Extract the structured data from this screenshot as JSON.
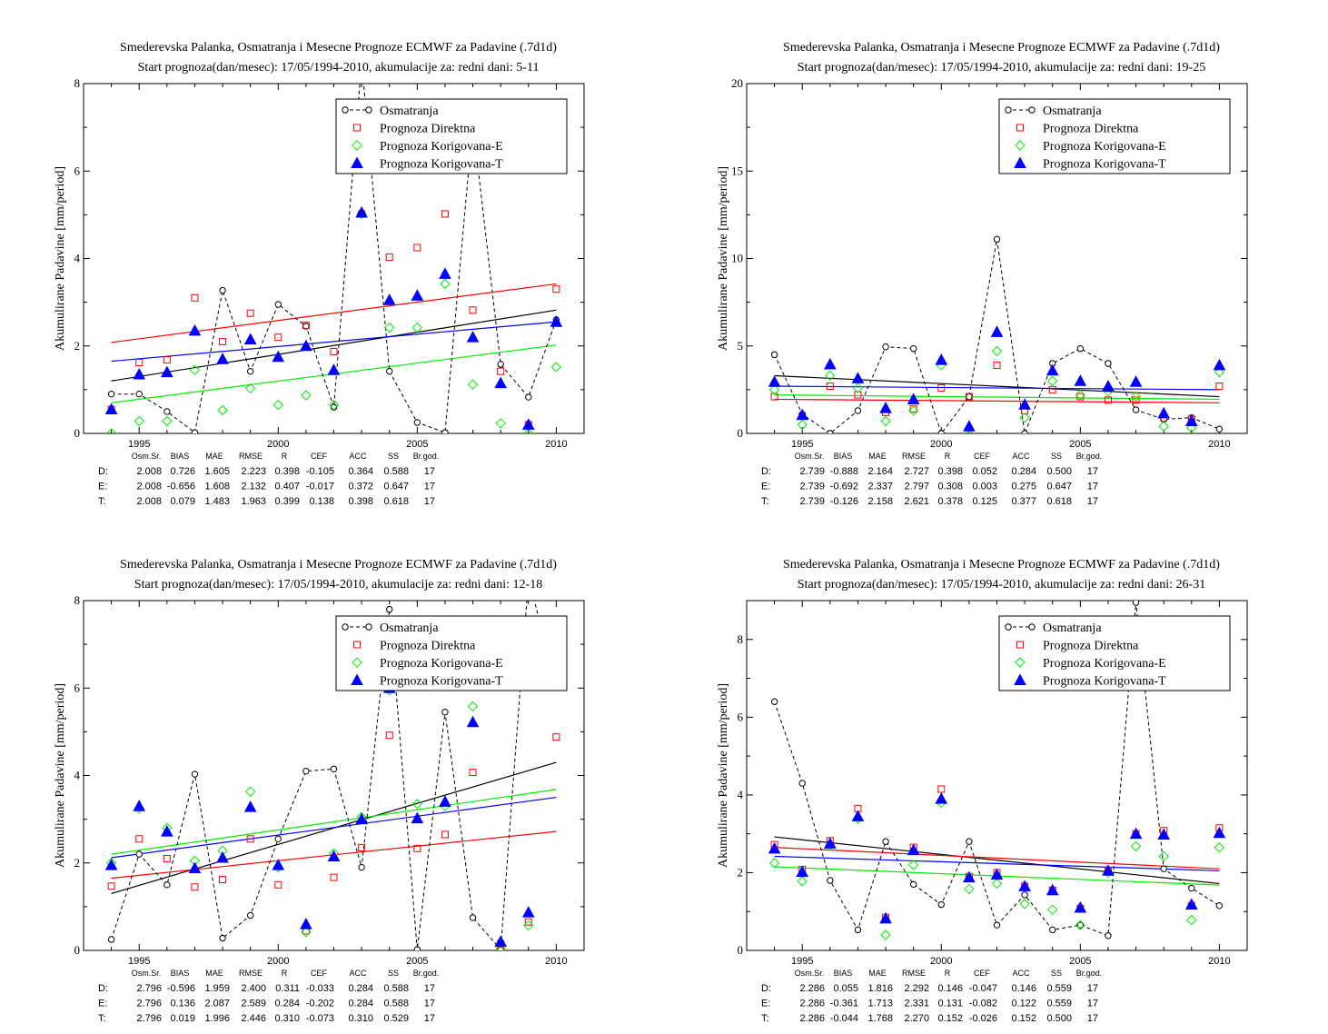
{
  "colors": {
    "obs": "#000000",
    "direct": "#ff0000",
    "corr_e": "#00ee00",
    "corr_t": "#0000ff"
  },
  "chart_data": [
    {
      "type": "scatter",
      "title": "Smederevska Palanka, Osmatranja i Mesecne Prognoze ECMWF za Padavine (.7d1d)",
      "subtitle": "Start prognoza(dan/mesec): 17/05/1994-2010, akumulacije za: redni dani: 5-11",
      "xlabel": "",
      "ylabel": "Akumulirane Padavine [mm/period]",
      "xlim": [
        1993,
        2011
      ],
      "ylim": [
        0,
        8
      ],
      "yticks": [
        0,
        2,
        4,
        6,
        8
      ],
      "xticks": [
        1995,
        2000,
        2005,
        2010
      ],
      "grid": false,
      "legend_position": "top-right",
      "x": [
        1994,
        1995,
        1996,
        1997,
        1998,
        1999,
        2000,
        2001,
        2002,
        2003,
        2004,
        2005,
        2006,
        2007,
        2008,
        2009,
        2010
      ],
      "series": [
        {
          "name": "Osmatranja",
          "style": "obs",
          "values": [
            0.9,
            0.9,
            0.5,
            0.02,
            3.27,
            1.42,
            2.95,
            2.45,
            0.6,
            8.5,
            1.42,
            0.25,
            0.02,
            7.1,
            1.58,
            0.83,
            2.6
          ]
        },
        {
          "name": "Prognoza Direktna",
          "style": "direct",
          "values": [
            0.55,
            1.62,
            1.68,
            3.1,
            2.1,
            2.75,
            2.2,
            2.47,
            1.87,
            5.02,
            4.03,
            4.25,
            5.02,
            2.82,
            1.42,
            0.2,
            3.3
          ]
        },
        {
          "name": "Prognoza Korigovana-E",
          "style": "corr_e",
          "values": [
            0.0,
            0.28,
            0.28,
            1.45,
            0.53,
            1.03,
            0.65,
            0.87,
            0.65,
            5.02,
            2.42,
            2.42,
            3.42,
            1.12,
            0.23,
            0.0,
            1.52
          ]
        },
        {
          "name": "Prognoza Korigovana-T",
          "style": "corr_t",
          "values": [
            0.55,
            1.35,
            1.4,
            2.35,
            1.7,
            2.15,
            1.75,
            2.0,
            1.45,
            5.05,
            3.05,
            3.15,
            3.65,
            2.2,
            1.15,
            0.2,
            2.55
          ]
        }
      ],
      "trendlines": [
        {
          "style": "obs",
          "y_start": 1.2,
          "y_end": 2.82
        },
        {
          "style": "direct",
          "y_start": 2.08,
          "y_end": 3.42
        },
        {
          "style": "corr_e",
          "y_start": 0.7,
          "y_end": 2.02
        },
        {
          "style": "corr_t",
          "y_start": 1.65,
          "y_end": 2.55
        }
      ],
      "stats_headers": [
        "Osm.Sr.",
        "BIAS",
        "MAE",
        "RMSE",
        "R",
        "CEF",
        "ACC",
        "SS",
        "Br.god."
      ],
      "stats": [
        {
          "label": "D:",
          "style": "direct",
          "values": [
            "2.008",
            "0.726",
            "1.605",
            "2.223",
            "0.398",
            "-0.105",
            "0.364",
            "0.588",
            "17"
          ]
        },
        {
          "label": "E:",
          "style": "corr_e",
          "values": [
            "2.008",
            "-0.656",
            "1.608",
            "2.132",
            "0.407",
            "-0.017",
            "0.372",
            "0.647",
            "17"
          ]
        },
        {
          "label": "T:",
          "style": "corr_t",
          "values": [
            "2.008",
            "0.079",
            "1.483",
            "1.963",
            "0.399",
            "0.138",
            "0.398",
            "0.618",
            "17"
          ]
        }
      ]
    },
    {
      "type": "scatter",
      "title": "Smederevska Palanka, Osmatranja i Mesecne Prognoze ECMWF za Padavine (.7d1d)",
      "subtitle": "Start prognoza(dan/mesec): 17/05/1994-2010, akumulacije za: redni dani: 19-25",
      "xlabel": "",
      "ylabel": "Akumulirane Padavine [mm/period]",
      "xlim": [
        1993,
        2011
      ],
      "ylim": [
        0,
        20
      ],
      "yticks": [
        0,
        5,
        10,
        15,
        20
      ],
      "xticks": [
        1995,
        2000,
        2005,
        2010
      ],
      "grid": false,
      "legend_position": "top-right",
      "x": [
        1994,
        1995,
        1996,
        1997,
        1998,
        1999,
        2000,
        2001,
        2002,
        2003,
        2004,
        2005,
        2006,
        2007,
        2008,
        2009,
        2010
      ],
      "series": [
        {
          "name": "Osmatranja",
          "style": "obs",
          "values": [
            4.5,
            1.1,
            0.0,
            1.3,
            4.95,
            4.85,
            0.0,
            2.1,
            11.1,
            0.0,
            4.0,
            4.85,
            4.0,
            1.35,
            0.8,
            0.9,
            0.25
          ]
        },
        {
          "name": "Prognoza Direktna",
          "style": "direct",
          "values": [
            2.1,
            1.0,
            2.7,
            2.2,
            1.2,
            1.4,
            2.6,
            2.1,
            3.9,
            1.3,
            2.5,
            2.1,
            1.9,
            1.9,
            0.9,
            0.8,
            2.7
          ]
        },
        {
          "name": "Prognoza Korigovana-E",
          "style": "corr_e",
          "values": [
            2.5,
            0.5,
            3.3,
            2.6,
            0.7,
            1.3,
            3.9,
            0.2,
            4.7,
            0.9,
            3.0,
            2.2,
            2.4,
            2.1,
            0.4,
            0.3,
            3.5
          ]
        },
        {
          "name": "Prognoza Korigovana-T",
          "style": "corr_t",
          "values": [
            2.95,
            1.05,
            3.95,
            3.15,
            1.45,
            1.95,
            4.2,
            0.4,
            5.8,
            1.65,
            3.6,
            3.0,
            2.7,
            2.95,
            1.15,
            0.7,
            3.9
          ]
        }
      ],
      "trendlines": [
        {
          "style": "obs",
          "y_start": 3.3,
          "y_end": 2.1
        },
        {
          "style": "direct",
          "y_start": 1.95,
          "y_end": 1.75
        },
        {
          "style": "corr_e",
          "y_start": 2.2,
          "y_end": 1.95
        },
        {
          "style": "corr_t",
          "y_start": 2.7,
          "y_end": 2.5
        }
      ],
      "stats_headers": [
        "Osm.Sr.",
        "BIAS",
        "MAE",
        "RMSE",
        "R",
        "CEF",
        "ACC",
        "SS",
        "Br.god."
      ],
      "stats": [
        {
          "label": "D:",
          "style": "direct",
          "values": [
            "2.739",
            "-0.888",
            "2.164",
            "2.727",
            "0.398",
            "0.052",
            "0.284",
            "0.500",
            "17"
          ]
        },
        {
          "label": "E:",
          "style": "corr_e",
          "values": [
            "2.739",
            "-0.692",
            "2.337",
            "2.797",
            "0.308",
            "0.003",
            "0.275",
            "0.647",
            "17"
          ]
        },
        {
          "label": "T:",
          "style": "corr_t",
          "values": [
            "2.739",
            "-0.126",
            "2.158",
            "2.621",
            "0.378",
            "0.125",
            "0.377",
            "0.618",
            "17"
          ]
        }
      ]
    },
    {
      "type": "scatter",
      "title": "Smederevska Palanka, Osmatranja i Mesecne Prognoze ECMWF za Padavine (.7d1d)",
      "subtitle": "Start prognoza(dan/mesec): 17/05/1994-2010, akumulacije za: redni dani: 12-18",
      "xlabel": "",
      "ylabel": "Akumulirane Padavine [mm/period]",
      "xlim": [
        1993,
        2011
      ],
      "ylim": [
        0,
        8
      ],
      "yticks": [
        0,
        2,
        4,
        6,
        8
      ],
      "xticks": [
        1995,
        2000,
        2005,
        2010
      ],
      "grid": false,
      "legend_position": "top-right",
      "x": [
        1994,
        1995,
        1996,
        1997,
        1998,
        1999,
        2000,
        2001,
        2002,
        2003,
        2004,
        2005,
        2006,
        2007,
        2008,
        2009,
        2010
      ],
      "series": [
        {
          "name": "Osmatranja",
          "style": "obs",
          "values": [
            0.25,
            2.2,
            1.5,
            4.03,
            0.28,
            0.8,
            2.55,
            4.1,
            4.15,
            1.9,
            7.8,
            0.02,
            5.45,
            0.75,
            0.02,
            8.5,
            6.1
          ]
        },
        {
          "name": "Prognoza Direktna",
          "style": "direct",
          "values": [
            1.47,
            2.55,
            2.1,
            1.45,
            1.62,
            2.55,
            1.5,
            0.45,
            1.67,
            2.35,
            4.92,
            2.33,
            2.65,
            4.07,
            0.15,
            0.65,
            4.88
          ]
        },
        {
          "name": "Prognoza Korigovana-E",
          "style": "corr_e",
          "values": [
            2.0,
            3.25,
            2.8,
            2.05,
            2.28,
            3.63,
            1.9,
            0.42,
            2.22,
            3.05,
            5.95,
            3.35,
            3.3,
            5.58,
            0.05,
            0.57,
            6.87
          ]
        },
        {
          "name": "Prognoza Korigovana-T",
          "style": "corr_t",
          "values": [
            1.95,
            3.3,
            2.72,
            1.88,
            2.12,
            3.28,
            1.95,
            0.6,
            2.15,
            3.0,
            6.0,
            3.02,
            3.4,
            5.22,
            0.2,
            0.87,
            6.25
          ]
        }
      ],
      "trendlines": [
        {
          "style": "obs",
          "y_start": 1.3,
          "y_end": 4.3
        },
        {
          "style": "direct",
          "y_start": 1.65,
          "y_end": 2.72
        },
        {
          "style": "corr_e",
          "y_start": 2.2,
          "y_end": 3.68
        },
        {
          "style": "corr_t",
          "y_start": 2.12,
          "y_end": 3.5
        }
      ],
      "stats_headers": [
        "Osm.Sr.",
        "BIAS",
        "MAE",
        "RMSE",
        "R",
        "CEF",
        "ACC",
        "SS",
        "Br.god."
      ],
      "stats": [
        {
          "label": "D:",
          "style": "direct",
          "values": [
            "2.796",
            "-0.596",
            "1.959",
            "2.400",
            "0.311",
            "-0.033",
            "0.284",
            "0.588",
            "17"
          ]
        },
        {
          "label": "E:",
          "style": "corr_e",
          "values": [
            "2.796",
            "0.136",
            "2.087",
            "2.589",
            "0.284",
            "-0.202",
            "0.284",
            "0.588",
            "17"
          ]
        },
        {
          "label": "T:",
          "style": "corr_t",
          "values": [
            "2.796",
            "0.019",
            "1.996",
            "2.446",
            "0.310",
            "-0.073",
            "0.310",
            "0.529",
            "17"
          ]
        }
      ]
    },
    {
      "type": "scatter",
      "title": "Smederevska Palanka, Osmatranja i Mesecne Prognoze ECMWF za Padavine (.7d1d)",
      "subtitle": "Start prognoza(dan/mesec): 17/05/1994-2010, akumulacije za: redni dani: 26-31",
      "xlabel": "",
      "ylabel": "Akumulirane Padavine [mm/period]",
      "xlim": [
        1993,
        2011
      ],
      "ylim": [
        0,
        9
      ],
      "yticks": [
        0,
        2,
        4,
        6,
        8
      ],
      "xticks": [
        1995,
        2000,
        2005,
        2010
      ],
      "grid": false,
      "legend_position": "top-right",
      "x": [
        1994,
        1995,
        1996,
        1997,
        1998,
        1999,
        2000,
        2001,
        2002,
        2003,
        2004,
        2005,
        2006,
        2007,
        2008,
        2009,
        2010
      ],
      "series": [
        {
          "name": "Osmatranja",
          "style": "obs",
          "values": [
            6.4,
            4.3,
            1.8,
            0.53,
            2.8,
            1.7,
            1.18,
            2.8,
            0.65,
            1.43,
            0.53,
            0.65,
            0.38,
            8.95,
            2.1,
            1.6,
            1.15
          ]
        },
        {
          "name": "Prognoza Direktna",
          "style": "direct",
          "values": [
            2.72,
            2.08,
            2.82,
            3.65,
            0.85,
            2.65,
            4.15,
            1.9,
            2.0,
            1.65,
            1.55,
            1.08,
            2.05,
            3.0,
            3.08,
            1.15,
            3.15
          ]
        },
        {
          "name": "Prognoza Korigovana-E",
          "style": "corr_e",
          "values": [
            2.25,
            1.78,
            2.7,
            3.38,
            0.4,
            2.2,
            3.8,
            1.58,
            1.72,
            1.2,
            1.05,
            0.65,
            2.0,
            2.68,
            2.42,
            0.78,
            2.65
          ]
        },
        {
          "name": "Prognoza Korigovana-T",
          "style": "corr_t",
          "values": [
            2.62,
            2.02,
            2.75,
            3.45,
            0.82,
            2.58,
            3.9,
            1.88,
            1.95,
            1.65,
            1.55,
            1.1,
            2.05,
            3.0,
            2.98,
            1.18,
            3.02
          ]
        }
      ],
      "trendlines": [
        {
          "style": "obs",
          "y_start": 2.92,
          "y_end": 1.72
        },
        {
          "style": "direct",
          "y_start": 2.65,
          "y_end": 2.1
        },
        {
          "style": "corr_e",
          "y_start": 2.15,
          "y_end": 1.68
        },
        {
          "style": "corr_t",
          "y_start": 2.42,
          "y_end": 2.05
        }
      ],
      "stats_headers": [
        "Osm.Sr.",
        "BIAS",
        "MAE",
        "RMSE",
        "R",
        "CEF",
        "ACC",
        "SS",
        "Br.god."
      ],
      "stats": [
        {
          "label": "D:",
          "style": "direct",
          "values": [
            "2.286",
            "0.055",
            "1.816",
            "2.292",
            "0.146",
            "-0.047",
            "0.146",
            "0.559",
            "17"
          ]
        },
        {
          "label": "E:",
          "style": "corr_e",
          "values": [
            "2.286",
            "-0.361",
            "1.713",
            "2.331",
            "0.131",
            "-0.082",
            "0.122",
            "0.559",
            "17"
          ]
        },
        {
          "label": "T:",
          "style": "corr_t",
          "values": [
            "2.286",
            "-0.044",
            "1.768",
            "2.270",
            "0.152",
            "-0.026",
            "0.152",
            "0.500",
            "17"
          ]
        }
      ]
    }
  ]
}
